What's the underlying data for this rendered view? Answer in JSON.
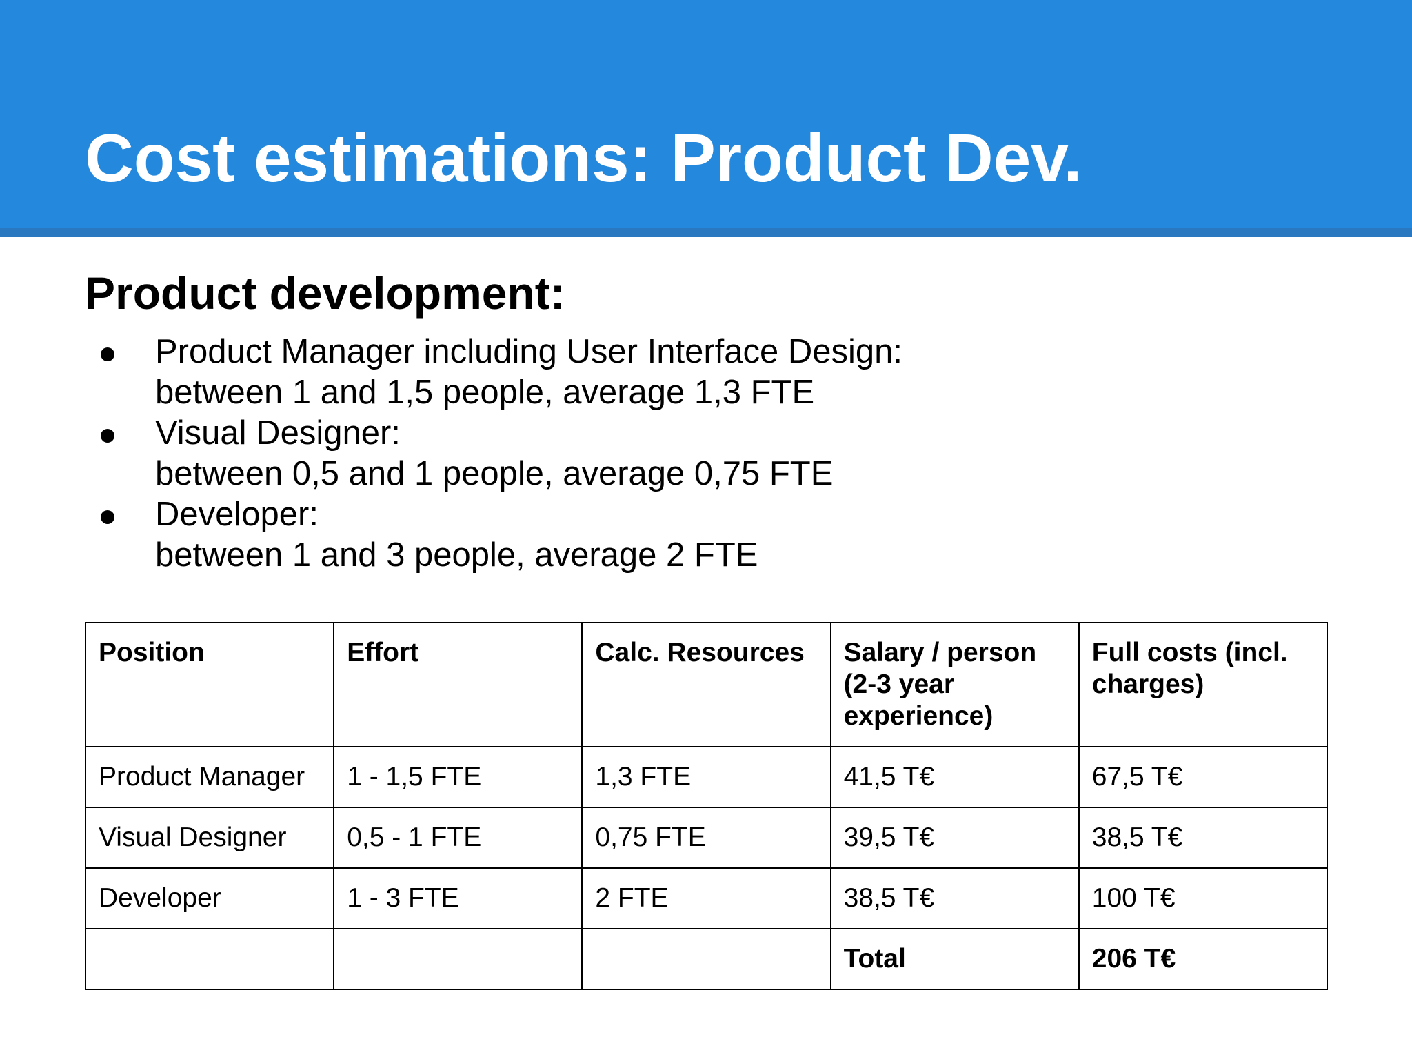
{
  "slide": {
    "title": "Cost estimations: Product Dev.",
    "heading": "Product development:",
    "bullets": [
      {
        "line1": "Product Manager including User Interface Design:",
        "line2": "between 1 and 1,5 people, average 1,3 FTE"
      },
      {
        "line1": "Visual Designer:",
        "line2": "between 0,5 and 1 people, average 0,75 FTE"
      },
      {
        "line1": "Developer:",
        "line2": "between 1 and 3 people, average 2 FTE"
      }
    ],
    "colors": {
      "header_band": "#2488dd",
      "header_stripe": "#2a78c0",
      "title_text": "#ffffff"
    }
  },
  "table": {
    "headers": [
      "Position",
      "Effort",
      "Calc. Resources",
      "Salary / person (2-3 year experience)",
      "Full costs (incl. charges)"
    ],
    "rows": [
      [
        "Product Manager",
        "1 - 1,5 FTE",
        "1,3 FTE",
        "41,5 T€",
        "67,5 T€"
      ],
      [
        "Visual Designer",
        "0,5 - 1 FTE",
        "0,75 FTE",
        "39,5 T€",
        "38,5 T€"
      ],
      [
        "Developer",
        "1 - 3 FTE",
        "2 FTE",
        "38,5 T€",
        "100 T€"
      ]
    ],
    "total_row": [
      "",
      "",
      "",
      "Total",
      "206 T€"
    ]
  }
}
